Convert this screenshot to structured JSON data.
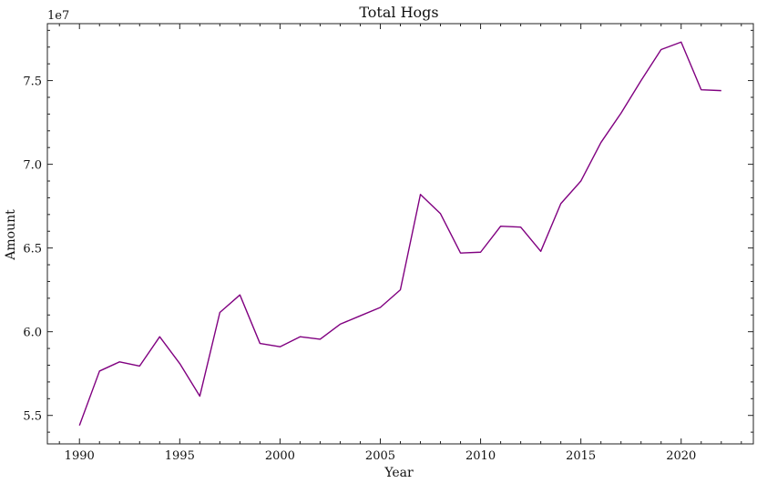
{
  "chart_data": {
    "type": "line",
    "title": "Total Hogs",
    "xlabel": "Year",
    "ylabel": "Amount",
    "y_offset_label": "1e7",
    "xlim": [
      1988.4,
      2023.6
    ],
    "ylim": [
      5.33,
      7.84
    ],
    "x_ticks": [
      1990,
      1995,
      2000,
      2005,
      2010,
      2015,
      2020
    ],
    "y_ticks": [
      5.5,
      6.0,
      6.5,
      7.0,
      7.5
    ],
    "y_tick_labels": [
      "5.5",
      "6.0",
      "6.5",
      "7.0",
      "7.5"
    ],
    "x_minor_step": 1,
    "y_minor_step": 0.1,
    "grid": false,
    "ticks_direction": "in",
    "ticks_on_all_sides": true,
    "line_color": "#800080",
    "series": [
      {
        "x": [
          1990,
          1991,
          1992,
          1993,
          1994,
          1995,
          1996,
          1997,
          1998,
          1999,
          2000,
          2001,
          2002,
          2003,
          2004,
          2005,
          2006,
          2007,
          2008,
          2009,
          2010,
          2011,
          2012,
          2013,
          2014,
          2015,
          2016,
          2017,
          2018,
          2019,
          2020,
          2021,
          2022
        ],
        "values": [
          5.44,
          5.765,
          5.82,
          5.795,
          5.97,
          5.81,
          5.615,
          6.115,
          6.22,
          5.93,
          5.91,
          5.97,
          5.955,
          6.045,
          6.095,
          6.145,
          6.25,
          6.82,
          6.705,
          6.47,
          6.475,
          6.63,
          6.625,
          6.48,
          6.765,
          6.9,
          7.13,
          7.305,
          7.5,
          7.685,
          7.73,
          7.445,
          7.44
        ]
      }
    ]
  }
}
